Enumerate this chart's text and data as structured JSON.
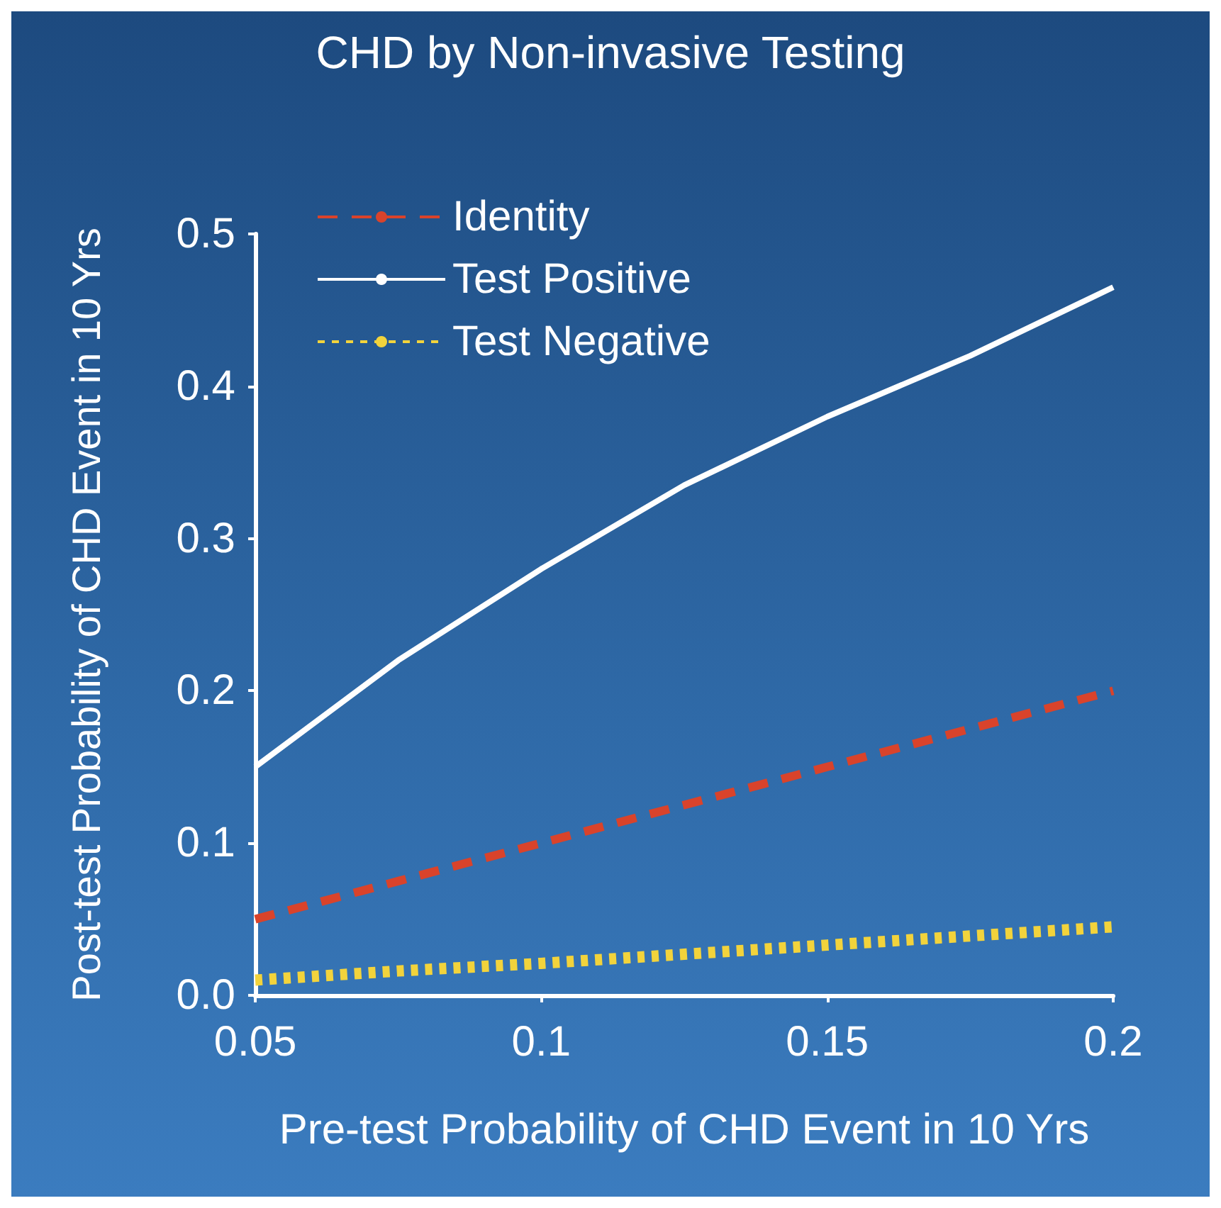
{
  "chart_data": {
    "type": "line",
    "title": "CHD by Non-invasive Testing",
    "xlabel": "Pre-test Probability of CHD Event in 10 Yrs",
    "ylabel": "Post-test Probability of CHD Event in 10 Yrs",
    "x": [
      0.05,
      0.075,
      0.1,
      0.125,
      0.15,
      0.175,
      0.2
    ],
    "series": [
      {
        "name": "Identity",
        "color": "#d9432b",
        "line_style": "dashed",
        "values": [
          0.05,
          0.075,
          0.1,
          0.125,
          0.15,
          0.175,
          0.2
        ]
      },
      {
        "name": "Test Positive",
        "color": "#ffffff",
        "line_style": "solid",
        "values": [
          0.15,
          0.22,
          0.28,
          0.335,
          0.38,
          0.42,
          0.465
        ]
      },
      {
        "name": "Test Negative",
        "color": "#f2d33c",
        "line_style": "dotted",
        "values": [
          0.01,
          0.016,
          0.021,
          0.027,
          0.033,
          0.039,
          0.045
        ]
      }
    ],
    "xlim": [
      0.05,
      0.2
    ],
    "xticks": [
      0.05,
      0.1,
      0.15,
      0.2
    ],
    "ylim": [
      0,
      0.5
    ],
    "yticks": [
      {
        "value": 0,
        "label": "0.0"
      },
      0.1,
      0.2,
      0.3,
      0.4,
      0.5
    ],
    "grid": false,
    "legend": "top left",
    "marker": "none"
  }
}
